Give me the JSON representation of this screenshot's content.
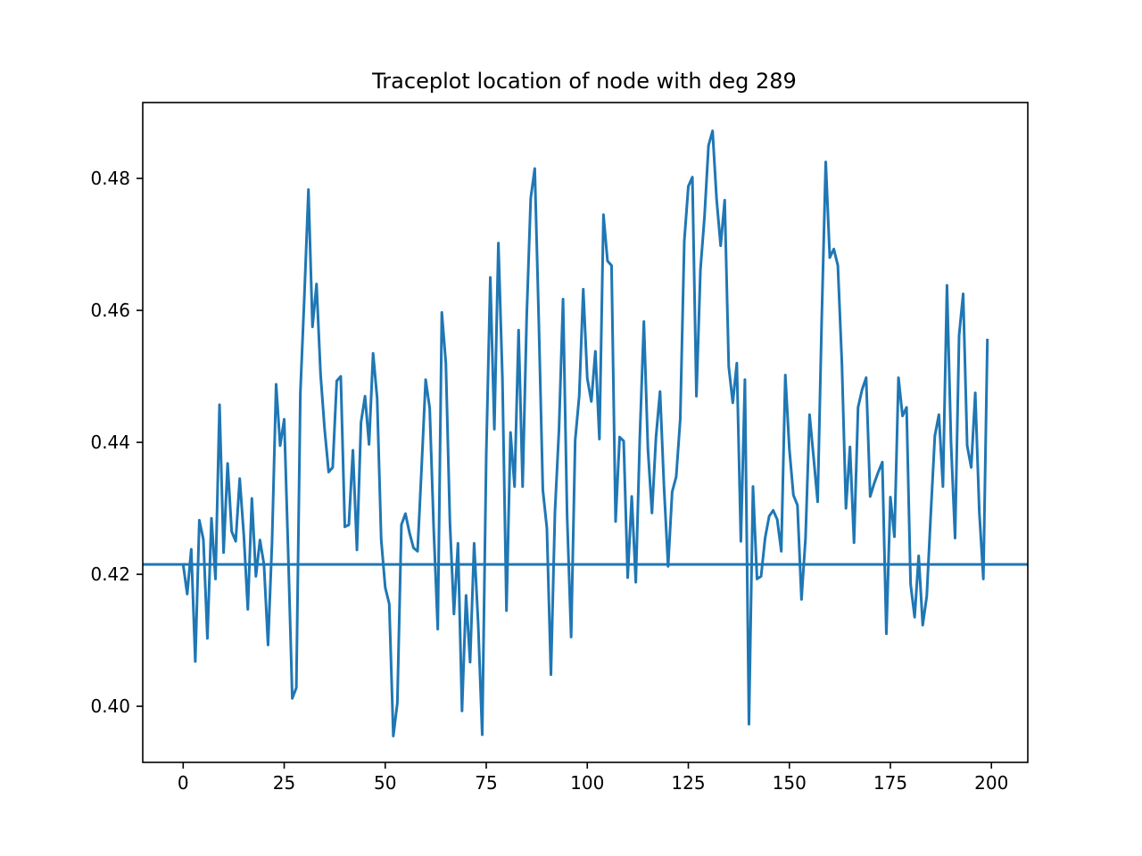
{
  "chart_data": {
    "type": "line",
    "title": "Traceplot location of node with deg 289",
    "xlabel": "",
    "ylabel": "",
    "xlim": [
      -10,
      209
    ],
    "ylim": [
      0.3915,
      0.4915
    ],
    "x_ticks": [
      0,
      25,
      50,
      75,
      100,
      125,
      150,
      175,
      200
    ],
    "x_tick_labels": [
      "0",
      "25",
      "50",
      "75",
      "100",
      "125",
      "150",
      "175",
      "200"
    ],
    "y_ticks": [
      0.4,
      0.42,
      0.44,
      0.46,
      0.48
    ],
    "y_tick_labels": [
      "0.40",
      "0.42",
      "0.44",
      "0.46",
      "0.48"
    ],
    "grid": false,
    "legend": "none",
    "line_color": "#1f77b4",
    "reference_line": {
      "y": 0.4215
    },
    "series": [
      {
        "values": [
          0.4215,
          0.417,
          0.4238,
          0.4068,
          0.4282,
          0.4253,
          0.4103,
          0.4285,
          0.4193,
          0.4457,
          0.4233,
          0.4368,
          0.4265,
          0.425,
          0.4345,
          0.426,
          0.4147,
          0.4315,
          0.4197,
          0.4252,
          0.4215,
          0.4093,
          0.425,
          0.4488,
          0.4395,
          0.4435,
          0.423,
          0.4012,
          0.4028,
          0.4475,
          0.4623,
          0.4783,
          0.4575,
          0.464,
          0.4503,
          0.442,
          0.4355,
          0.4362,
          0.4493,
          0.45,
          0.4272,
          0.4275,
          0.4388,
          0.4237,
          0.443,
          0.447,
          0.4397,
          0.4535,
          0.4467,
          0.4253,
          0.418,
          0.4155,
          0.3955,
          0.4005,
          0.4275,
          0.4292,
          0.4263,
          0.424,
          0.4235,
          0.4362,
          0.4495,
          0.4452,
          0.4268,
          0.4117,
          0.4597,
          0.452,
          0.428,
          0.414,
          0.4247,
          0.3993,
          0.4168,
          0.4067,
          0.4247,
          0.4125,
          0.3957,
          0.4383,
          0.465,
          0.442,
          0.4702,
          0.4497,
          0.4145,
          0.4415,
          0.4333,
          0.457,
          0.4333,
          0.459,
          0.477,
          0.4815,
          0.4583,
          0.4328,
          0.427,
          0.4048,
          0.4295,
          0.442,
          0.4617,
          0.429,
          0.4105,
          0.4403,
          0.447,
          0.4632,
          0.4497,
          0.4462,
          0.4538,
          0.4405,
          0.4745,
          0.4675,
          0.4668,
          0.428,
          0.4408,
          0.4402,
          0.4195,
          0.4318,
          0.4188,
          0.4408,
          0.4583,
          0.439,
          0.4293,
          0.4408,
          0.4477,
          0.433,
          0.4212,
          0.4325,
          0.4348,
          0.4435,
          0.4705,
          0.4788,
          0.4802,
          0.447,
          0.4662,
          0.4742,
          0.485,
          0.4872,
          0.4768,
          0.4698,
          0.4767,
          0.4515,
          0.446,
          0.452,
          0.425,
          0.4495,
          0.3973,
          0.4333,
          0.4193,
          0.4197,
          0.4255,
          0.4288,
          0.4297,
          0.4283,
          0.4235,
          0.4502,
          0.439,
          0.432,
          0.4305,
          0.4162,
          0.4255,
          0.4442,
          0.4377,
          0.431,
          0.4585,
          0.4825,
          0.468,
          0.4693,
          0.4668,
          0.452,
          0.43,
          0.4393,
          0.4248,
          0.4453,
          0.448,
          0.4498,
          0.4318,
          0.4338,
          0.4355,
          0.437,
          0.411,
          0.4317,
          0.4257,
          0.4498,
          0.444,
          0.4453,
          0.4185,
          0.4135,
          0.4228,
          0.4123,
          0.4167,
          0.4292,
          0.441,
          0.4442,
          0.4333,
          0.4638,
          0.44,
          0.4255,
          0.4562,
          0.4625,
          0.4395,
          0.4362,
          0.4475,
          0.4295,
          0.4193,
          0.4555
        ]
      }
    ]
  }
}
